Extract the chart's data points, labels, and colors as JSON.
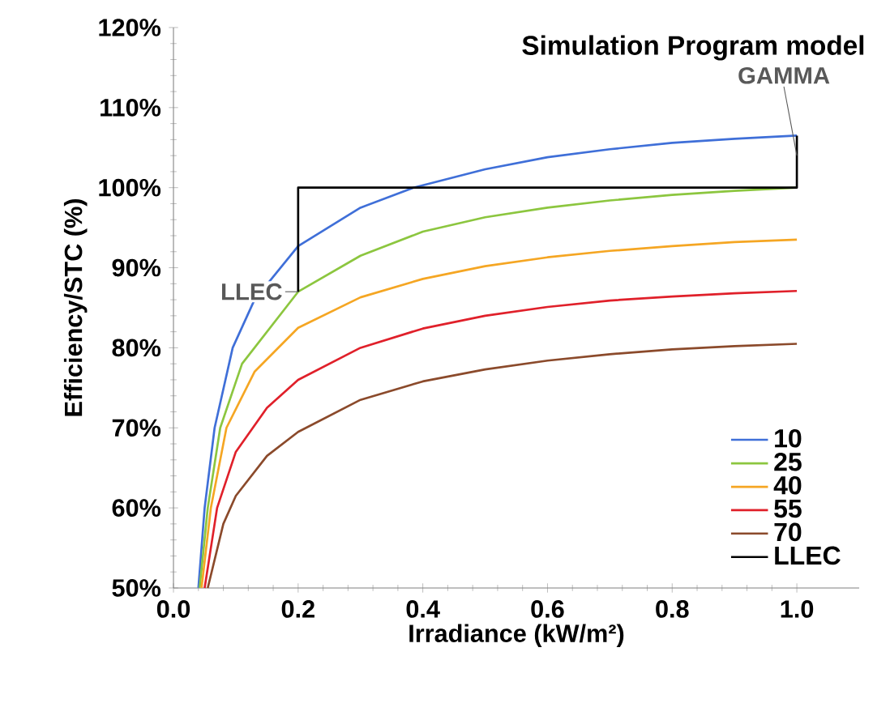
{
  "chart_data": {
    "type": "line",
    "title": "Simulation Program model",
    "xlabel": "Irradiance (kW/m²)",
    "ylabel": "Efficiency/STC (%)",
    "xlim": [
      0,
      1.1
    ],
    "ylim": [
      50,
      120
    ],
    "xticks": [
      {
        "value": 0,
        "label": "0.0"
      },
      {
        "value": 0.2,
        "label": "0.2"
      },
      {
        "value": 0.4,
        "label": "0.4"
      },
      {
        "value": 0.6,
        "label": "0.6"
      },
      {
        "value": 0.8,
        "label": "0.8"
      },
      {
        "value": 1.0,
        "label": "1.0"
      }
    ],
    "yticks": [
      {
        "value": 50,
        "label": "50%"
      },
      {
        "value": 60,
        "label": "60%"
      },
      {
        "value": 70,
        "label": "70%"
      },
      {
        "value": 80,
        "label": "80%"
      },
      {
        "value": 90,
        "label": "90%"
      },
      {
        "value": 100,
        "label": "100%"
      },
      {
        "value": 110,
        "label": "110%"
      },
      {
        "value": 120,
        "label": "120%"
      }
    ],
    "legend": "bottom right",
    "grid": false,
    "line_style": "solid",
    "annotations": [
      {
        "text": "GAMMA",
        "x": 1.0,
        "y": 104
      },
      {
        "text": "LLEC",
        "x": 0.2,
        "y": 87
      }
    ],
    "series": [
      {
        "name": "10",
        "color": "#3f6fd8",
        "x": [
          0.04,
          0.05,
          0.066,
          0.095,
          0.13,
          0.2,
          0.3,
          0.385,
          0.5,
          0.6,
          0.7,
          0.8,
          0.9,
          1.0
        ],
        "values": [
          50,
          60,
          70,
          80,
          86,
          92.7,
          97.5,
          100,
          102.3,
          103.8,
          104.8,
          105.6,
          106.1,
          106.5
        ]
      },
      {
        "name": "25",
        "color": "#8cc63f",
        "x": [
          0.042,
          0.055,
          0.075,
          0.11,
          0.2,
          0.3,
          0.4,
          0.5,
          0.6,
          0.7,
          0.8,
          0.9,
          1.0
        ],
        "values": [
          50,
          60,
          70,
          78,
          87,
          91.5,
          94.5,
          96.3,
          97.5,
          98.4,
          99.1,
          99.6,
          100
        ]
      },
      {
        "name": "40",
        "color": "#f5a623",
        "x": [
          0.045,
          0.06,
          0.085,
          0.13,
          0.2,
          0.3,
          0.4,
          0.5,
          0.6,
          0.7,
          0.8,
          0.9,
          1.0
        ],
        "values": [
          50,
          60,
          70,
          77,
          82.5,
          86.3,
          88.6,
          90.2,
          91.3,
          92.1,
          92.7,
          93.2,
          93.5
        ]
      },
      {
        "name": "55",
        "color": "#e0202a",
        "x": [
          0.05,
          0.07,
          0.1,
          0.15,
          0.2,
          0.3,
          0.4,
          0.5,
          0.6,
          0.7,
          0.8,
          0.9,
          1.0
        ],
        "values": [
          50,
          60,
          67,
          72.5,
          76,
          80,
          82.4,
          84,
          85.1,
          85.9,
          86.4,
          86.8,
          87.1
        ]
      },
      {
        "name": "70",
        "color": "#8b4a2b",
        "x": [
          0.055,
          0.08,
          0.1,
          0.15,
          0.2,
          0.3,
          0.4,
          0.5,
          0.6,
          0.7,
          0.8,
          0.9,
          1.0
        ],
        "values": [
          50,
          58,
          61.5,
          66.5,
          69.5,
          73.5,
          75.8,
          77.3,
          78.4,
          79.2,
          79.8,
          80.2,
          80.5
        ]
      },
      {
        "name": "LLEC",
        "color": "#000000",
        "x": [
          0.2,
          0.2,
          1.0,
          1.0
        ],
        "values": [
          87,
          100,
          100,
          106.5
        ]
      }
    ]
  }
}
